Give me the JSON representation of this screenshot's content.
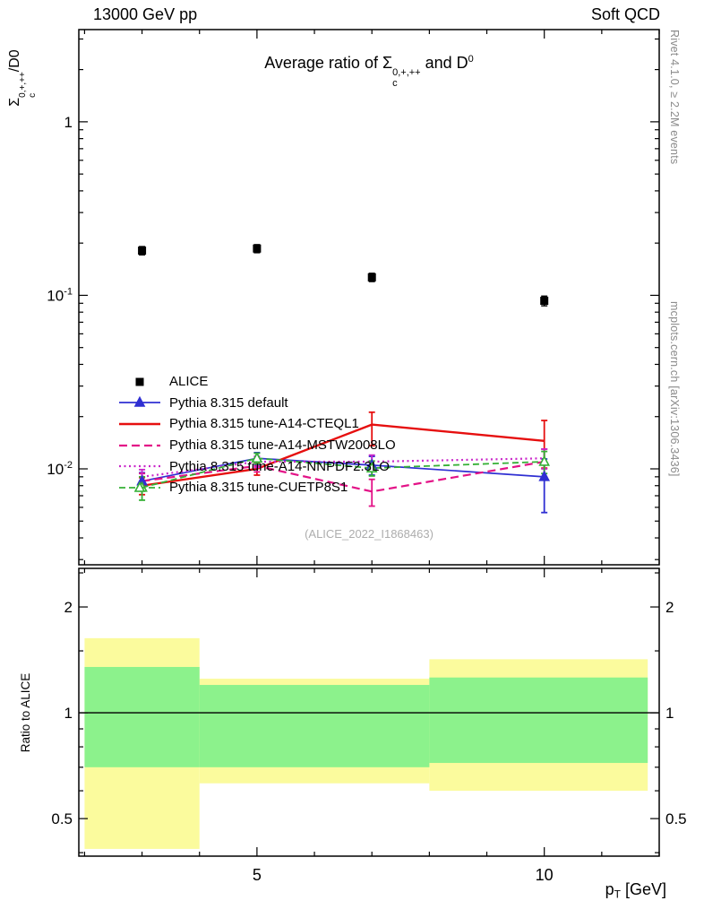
{
  "header": {
    "left": "13000 GeV pp",
    "right": "Soft QCD"
  },
  "side_notes": {
    "top": "Rivet 4.1.0, ≥ 2.2M events",
    "bottom": "mcplots.cern.ch [arXiv:1306.3436]"
  },
  "main_panel": {
    "title_parts": {
      "pre": "Average ratio of ",
      "sigma": "Σ",
      "sigma_sub": "c",
      "sigma_sup": "0,+,++",
      "mid": " and D",
      "d_sup": "0"
    },
    "ylabel_parts": {
      "sigma": "Σ",
      "sub": "c",
      "sup": "0,+,++",
      "rest": "/D0"
    },
    "watermark": "(ALICE_2022_I1868463)"
  },
  "chart_data": {
    "type": "line",
    "xlabel_parts": {
      "base": "p",
      "sub": "T",
      "rest": " [GeV]"
    },
    "xlim": [
      1.9,
      12.0
    ],
    "x_ticks": [
      {
        "v": 5,
        "label": "5"
      },
      {
        "v": 10,
        "label": "10"
      }
    ],
    "x_minor": [
      2,
      3,
      4,
      6,
      7,
      8,
      9,
      11,
      12
    ],
    "x": [
      3,
      5,
      7,
      10
    ],
    "main": {
      "ylim": [
        0.0028,
        3.4
      ],
      "yticks": [
        {
          "v": 1,
          "mant": "1",
          "exp": ""
        },
        {
          "v": 0.1,
          "mant": "10",
          "exp": "-1"
        },
        {
          "v": 0.01,
          "mant": "10",
          "exp": "-2"
        }
      ]
    },
    "alice": {
      "label": "ALICE",
      "color": "#000000",
      "y": [
        0.181,
        0.186,
        0.127,
        0.093
      ],
      "yerr": [
        [
          0.171,
          0.191
        ],
        [
          0.176,
          0.196
        ],
        [
          0.12,
          0.134
        ],
        [
          0.087,
          0.099
        ]
      ]
    },
    "series": [
      {
        "label": "Pythia 8.315 default",
        "color": "#2f2fd2",
        "dash": "",
        "width": 1.7,
        "marker": "triangle-filled",
        "y": [
          0.0085,
          0.0115,
          0.0105,
          0.009
        ],
        "yerr": [
          [
            0.0075,
            0.0095
          ],
          [
            0.0106,
            0.0124
          ],
          [
            0.0092,
            0.0118
          ],
          [
            0.0056,
            0.0114
          ]
        ]
      },
      {
        "label": "Pythia 8.315 tune-A14-CTEQL1",
        "color": "#e60f0f",
        "dash": "",
        "width": 2.4,
        "marker": "none",
        "y": [
          0.008,
          0.01,
          0.018,
          0.0145
        ],
        "yerr": [
          [
            0.0071,
            0.0089
          ],
          [
            0.0092,
            0.0108
          ],
          [
            0.0136,
            0.0212
          ],
          [
            0.0101,
            0.019
          ]
        ]
      },
      {
        "label": "Pythia 8.315 tune-A14-MSTW2008LO",
        "color": "#e31287",
        "dash": "9,5",
        "width": 2.2,
        "marker": "none",
        "y": [
          0.0085,
          0.0104,
          0.0074,
          0.011
        ],
        "yerr": [
          [
            0.0076,
            0.0094
          ],
          [
            0.0096,
            0.0112
          ],
          [
            0.0061,
            0.0087
          ],
          [
            0.009,
            0.013
          ]
        ]
      },
      {
        "label": "Pythia 8.315 tune-A14-NNPDF2.3LO",
        "color": "#c926c9",
        "dash": "2,3.5",
        "width": 2.2,
        "marker": "none",
        "y": [
          0.009,
          0.011,
          0.011,
          0.0115
        ],
        "yerr": [
          [
            0.0081,
            0.0099
          ],
          [
            0.0102,
            0.0118
          ],
          [
            0.01,
            0.012
          ],
          [
            0.01,
            0.013
          ]
        ]
      },
      {
        "label": "Pythia 8.315 tune-CUETP8S1",
        "color": "#35b035",
        "dash": "7,4",
        "width": 1.8,
        "marker": "triangle-open",
        "y": [
          0.0078,
          0.0115,
          0.0101,
          0.011
        ],
        "yerr": [
          [
            0.0066,
            0.009
          ],
          [
            0.0107,
            0.0123
          ],
          [
            0.0091,
            0.0111
          ],
          [
            0.0094,
            0.0126
          ]
        ]
      }
    ],
    "ratio": {
      "ylabel": "Ratio to ALICE",
      "ylim": [
        0.391,
        2.575
      ],
      "yticks": [
        {
          "v": 0.5,
          "label": "0.5"
        },
        {
          "v": 1,
          "label": "1"
        },
        {
          "v": 2,
          "label": "2"
        }
      ],
      "y_minor": [
        0.4,
        0.6,
        0.7,
        0.8,
        0.9,
        1.5,
        2.5
      ],
      "ref_line": 1,
      "band_colors": {
        "outer": "#fbfb9d",
        "inner": "#8cf28c"
      },
      "bands": [
        {
          "x": [
            2,
            4
          ],
          "outer": [
            0.41,
            1.63
          ],
          "inner": [
            0.7,
            1.35
          ]
        },
        {
          "x": [
            4,
            8
          ],
          "outer": [
            0.63,
            1.25
          ],
          "inner": [
            0.7,
            1.2
          ]
        },
        {
          "x": [
            8,
            11.8
          ],
          "outer": [
            0.6,
            1.42
          ],
          "inner": [
            0.72,
            1.26
          ]
        }
      ]
    }
  }
}
